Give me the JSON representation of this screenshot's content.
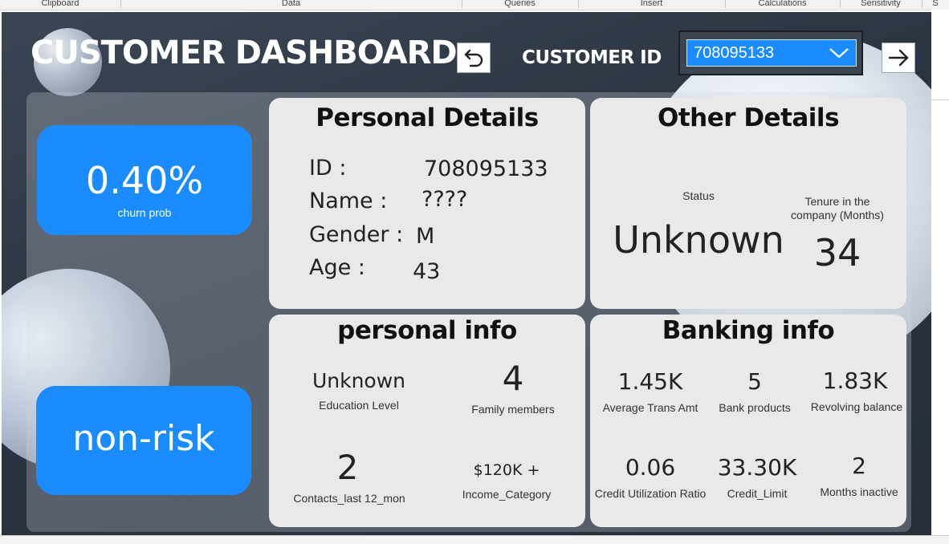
{
  "ribbon": {
    "groups": [
      "Clipboard",
      "Data",
      "Queries",
      "Insert",
      "Calculations",
      "Sensitivity",
      "S"
    ]
  },
  "dashboard": {
    "title": "CUSTOMER DASHBOARD",
    "customer_id_label": "CUSTOMER ID",
    "selected_customer_id": "708095133",
    "back_icon": "back-arrow-icon",
    "next_icon": "right-arrow-icon"
  },
  "churn": {
    "value": "0.40%",
    "label": "churn prob",
    "risk": "non-risk"
  },
  "personal_details": {
    "title": "Personal Details",
    "id_label": "ID :",
    "id_value": "708095133",
    "name_label": "Name :",
    "name_value": "????",
    "gender_label": "Gender :",
    "gender_value": "M",
    "age_label": "Age :",
    "age_value": "43"
  },
  "other_details": {
    "title": "Other Details",
    "status_label": "Status",
    "status_value": "Unknown",
    "tenure_label_line1": "Tenure in the",
    "tenure_label_line2": "company (Months)",
    "tenure_value": "34"
  },
  "personal_info": {
    "title": "personal info",
    "education_value": "Unknown",
    "education_label": "Education Level",
    "family_value": "4",
    "family_label": "Family members",
    "contacts_value": "2",
    "contacts_label": "Contacts_last 12_mon",
    "income_value": "$120K +",
    "income_label": "Income_Category"
  },
  "banking_info": {
    "title": "Banking info",
    "avg_trans_value": "1.45K",
    "avg_trans_label": "Average Trans Amt",
    "bank_products_value": "5",
    "bank_products_label": "Bank products",
    "revolving_value": "1.83K",
    "revolving_label": "Revolving balance",
    "util_value": "0.06",
    "util_label": "Credit Utilization Ratio",
    "credit_limit_value": "33.30K",
    "credit_limit_label": "Credit_Limit",
    "inactive_value": "2",
    "inactive_label": "Months inactive"
  },
  "colors": {
    "accent_blue": "#1a8cff",
    "canvas_dark": "#2b3441",
    "card_bg": "#e9e9ea"
  }
}
